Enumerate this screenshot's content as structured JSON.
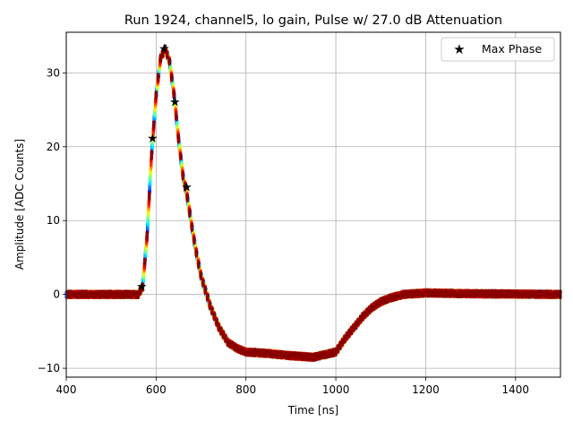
{
  "chart_data": {
    "type": "scatter",
    "title": "Run 1924, channel5, lo gain, Pulse w/ 27.0 dB Attenuation",
    "xlabel": "Time [ns]",
    "ylabel": "Amplitude [ADC Counts]",
    "xlim": [
      400,
      1500
    ],
    "ylim": [
      -11.2,
      35.5
    ],
    "xticks": [
      400,
      600,
      800,
      1000,
      1200,
      1400
    ],
    "yticks": [
      -10,
      0,
      10,
      20,
      30
    ],
    "grid": true,
    "legend_position": "top-right",
    "colormap": "jet",
    "pulse_profile": {
      "time_ns": [
        400,
        560,
        570,
        580,
        590,
        600,
        610,
        620,
        630,
        640,
        650,
        660,
        670,
        680,
        690,
        700,
        720,
        740,
        760,
        780,
        800,
        850,
        900,
        950,
        1000,
        1020,
        1040,
        1060,
        1080,
        1100,
        1120,
        1150,
        1200,
        1300,
        1500
      ],
      "amplitude": [
        0,
        0,
        1,
        8,
        19,
        27,
        32,
        33.3,
        31.5,
        27,
        21,
        16,
        13,
        9,
        5.5,
        2.5,
        -1.5,
        -4.5,
        -6.5,
        -7.3,
        -7.8,
        -8.0,
        -8.3,
        -8.5,
        -7.8,
        -6.0,
        -4.5,
        -3,
        -1.8,
        -1.0,
        -0.5,
        0,
        0.2,
        0.1,
        0
      ]
    },
    "series": [
      {
        "name": "Max Phase",
        "marker": "star",
        "color": "#000000",
        "x": [
          568,
          592,
          618,
          642,
          668
        ],
        "y": [
          1.1,
          21.2,
          33.3,
          26.1,
          14.6
        ]
      }
    ]
  }
}
